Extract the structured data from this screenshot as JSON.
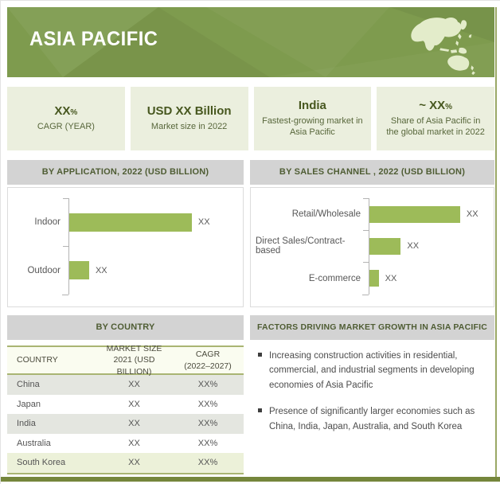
{
  "banner": {
    "title": "ASIA PACIFIC"
  },
  "stats": [
    {
      "value": "XX",
      "suffix": "%",
      "label": "CAGR (YEAR)"
    },
    {
      "value": "USD XX Billion",
      "suffix": "",
      "label": "Market size in 2022"
    },
    {
      "value": "India",
      "suffix": "",
      "label": "Fastest-growing market in\nAsia Pacific"
    },
    {
      "value": "~ XX",
      "suffix": "%",
      "label": "Share of Asia Pacific in\nthe global market in 2022"
    }
  ],
  "chart_data": [
    {
      "type": "bar",
      "orientation": "horizontal",
      "title": "BY APPLICATION, 2022 (USD BILLION)",
      "categories": [
        "Indoor",
        "Outdoor"
      ],
      "value_labels": [
        "XX",
        "XX"
      ],
      "length_pct": [
        74,
        12
      ],
      "bar_color": "#9dbb59",
      "axis_color": "#b3b3b3",
      "legend": "none",
      "grid": false
    },
    {
      "type": "bar",
      "orientation": "horizontal",
      "title": "BY SALES CHANNEL , 2022 (USD BILLION)",
      "categories": [
        "Retail/Wholesale",
        "Direct Sales/Contract-based",
        "E-commerce"
      ],
      "value_labels": [
        "XX",
        "XX",
        "XX"
      ],
      "length_pct": [
        78,
        27,
        8
      ],
      "bar_color": "#9dbb59",
      "axis_color": "#b3b3b3",
      "legend": "none",
      "grid": false
    }
  ],
  "by_country": {
    "title": "BY COUNTRY",
    "columns": [
      "COUNTRY",
      "MARKET SIZE\n2021 (USD BILLION)",
      "CAGR\n(2022–2027)"
    ],
    "rows": [
      {
        "country": "China",
        "market_size": "XX",
        "cagr": "XX%"
      },
      {
        "country": "Japan",
        "market_size": "XX",
        "cagr": "XX%"
      },
      {
        "country": "India",
        "market_size": "XX",
        "cagr": "XX%"
      },
      {
        "country": "Australia",
        "market_size": "XX",
        "cagr": "XX%"
      },
      {
        "country": "South Korea",
        "market_size": "XX",
        "cagr": "XX%"
      }
    ]
  },
  "factors": {
    "title": "FACTORS DRIVING MARKET GROWTH IN ASIA PACIFIC",
    "bullets": [
      "Increasing construction activities in residential, commercial, and industrial segments in developing economies of Asia Pacific",
      "Presence of significantly larger economies such as China, India, Japan, Australia, and South Korea"
    ]
  },
  "colors": {
    "banner_green": "#7e9b4e",
    "map_fill": "#e3ecca",
    "stat_box_bg": "#ebefde",
    "stat_text": "#47571f",
    "section_header_bg": "#d3d3d3",
    "section_header_text": "#4f5d34",
    "bar_green": "#9dbb59",
    "table_stripe_gray": "#e4e6e0",
    "table_stripe_green": "#ecf1d9",
    "table_border_olive": "#a9b573",
    "bottom_bar": "#75863c"
  }
}
